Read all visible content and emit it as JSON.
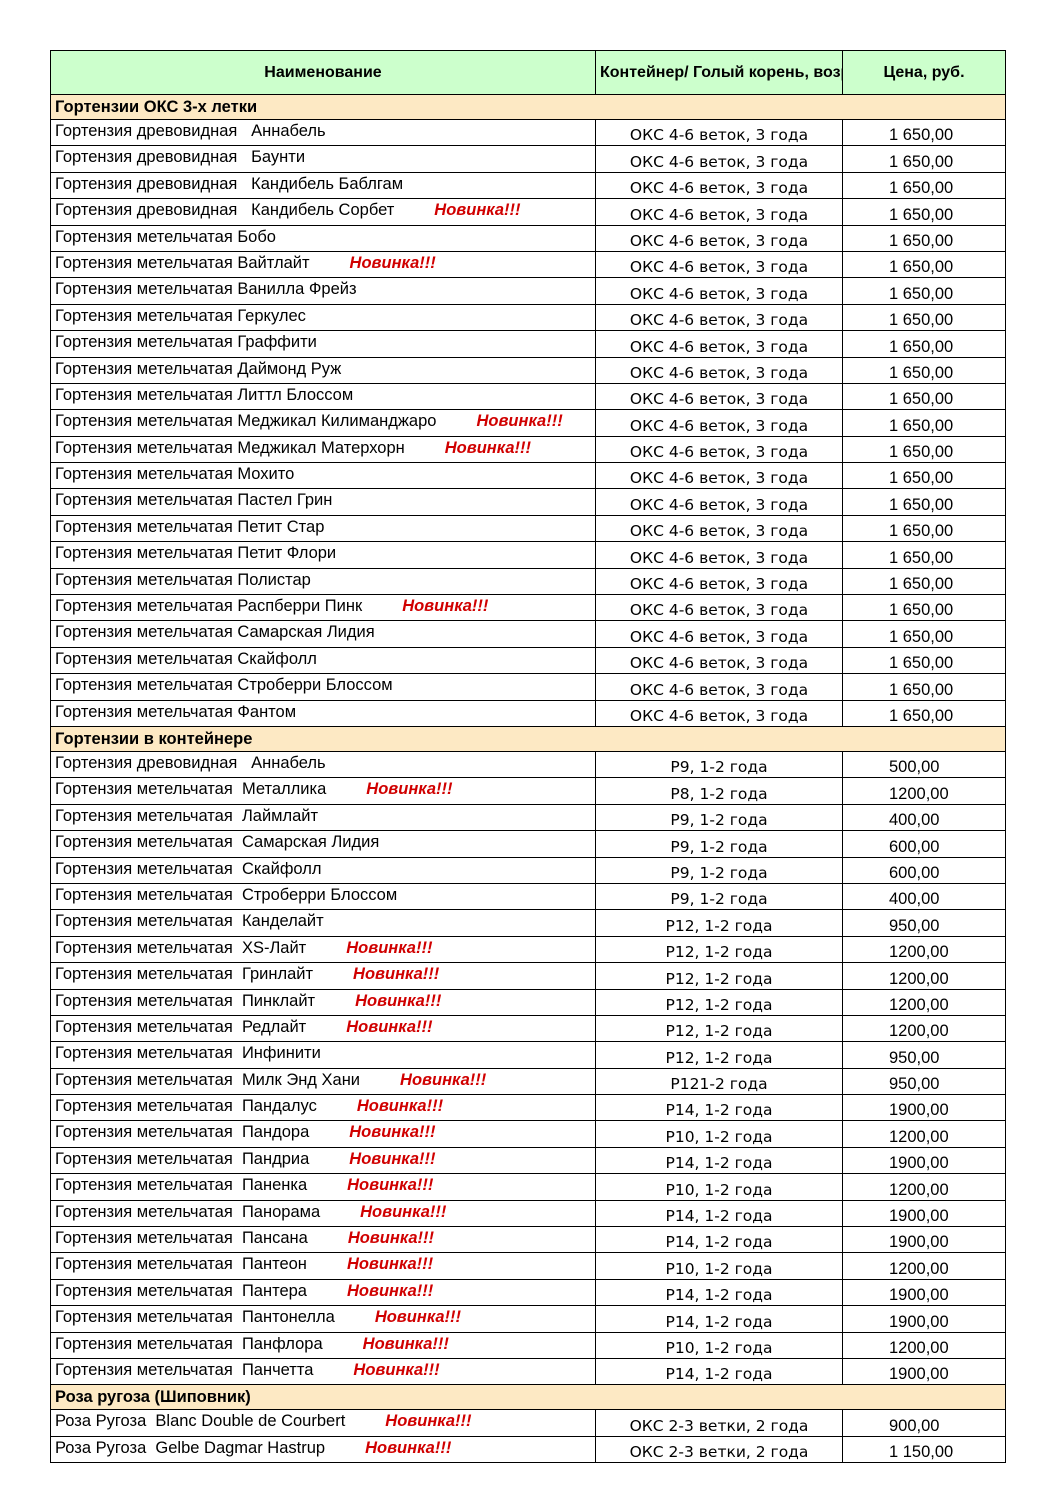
{
  "header": {
    "name": "Наименование",
    "container": "Контейнер/ Голый корень, возраст",
    "price": "Цена, руб."
  },
  "new_label": "Новинка!!!",
  "colors": {
    "header_bg": "#ccffcc",
    "section_bg": "#fde9c4",
    "new_badge": "#d00000"
  },
  "sections": [
    {
      "title": "Гортензии ОКС 3-х летки",
      "rows": [
        {
          "name": "Гортензия древовидная   Аннабель",
          "container": "ОКС 4-6 веток, 3 года",
          "price": "1 650,00",
          "new": false
        },
        {
          "name": "Гортензия древовидная   Баунти",
          "container": "ОКС 4-6 веток, 3 года",
          "price": "1 650,00",
          "new": false
        },
        {
          "name": "Гортензия древовидная   Кандибель Баблгам",
          "container": "ОКС 4-6 веток, 3 года",
          "price": "1 650,00",
          "new": false
        },
        {
          "name": "Гортензия древовидная   Кандибель Сорбет",
          "container": "ОКС 4-6 веток, 3 года",
          "price": "1 650,00",
          "new": true
        },
        {
          "name": "Гортензия метельчатая Бобо",
          "container": "ОКС 4-6 веток, 3 года",
          "price": "1 650,00",
          "new": false
        },
        {
          "name": "Гортензия метельчатая Вайтлайт",
          "container": "ОКС 4-6 веток, 3 года",
          "price": "1 650,00",
          "new": true
        },
        {
          "name": "Гортензия метельчатая Ванилла Фрейз",
          "container": "ОКС 4-6 веток, 3 года",
          "price": "1 650,00",
          "new": false
        },
        {
          "name": "Гортензия метельчатая Геркулес",
          "container": "ОКС 4-6 веток, 3 года",
          "price": "1 650,00",
          "new": false
        },
        {
          "name": "Гортензия метельчатая Граффити",
          "container": "ОКС 4-6 веток, 3 года",
          "price": "1 650,00",
          "new": false
        },
        {
          "name": "Гортензия метельчатая Даймонд Руж",
          "container": "ОКС 4-6 веток, 3 года",
          "price": "1 650,00",
          "new": false
        },
        {
          "name": "Гортензия метельчатая Литтл Блоссом",
          "container": "ОКС 4-6 веток, 3 года",
          "price": "1 650,00",
          "new": false
        },
        {
          "name": "Гортензия метельчатая Меджикал Килиманджаро",
          "container": "ОКС 4-6 веток, 3 года",
          "price": "1 650,00",
          "new": true
        },
        {
          "name": "Гортензия метельчатая Меджикал Матерхорн",
          "container": "ОКС 4-6 веток, 3 года",
          "price": "1 650,00",
          "new": true
        },
        {
          "name": "Гортензия метельчатая Мохито",
          "container": "ОКС 4-6 веток, 3 года",
          "price": "1 650,00",
          "new": false
        },
        {
          "name": "Гортензия метельчатая Пастел Грин",
          "container": "ОКС 4-6 веток, 3 года",
          "price": "1 650,00",
          "new": false
        },
        {
          "name": "Гортензия метельчатая Петит Стар",
          "container": "ОКС 4-6 веток, 3 года",
          "price": "1 650,00",
          "new": false
        },
        {
          "name": "Гортензия метельчатая Петит Флори",
          "container": "ОКС 4-6 веток, 3 года",
          "price": "1 650,00",
          "new": false
        },
        {
          "name": "Гортензия метельчатая Полистар",
          "container": "ОКС 4-6 веток, 3 года",
          "price": "1 650,00",
          "new": false
        },
        {
          "name": "Гортензия метельчатая Распберри Пинк",
          "container": "ОКС 4-6 веток, 3 года",
          "price": "1 650,00",
          "new": true
        },
        {
          "name": "Гортензия метельчатая Самарская Лидия",
          "container": "ОКС 4-6 веток, 3 года",
          "price": "1 650,00",
          "new": false
        },
        {
          "name": "Гортензия метельчатая Скайфолл",
          "container": "ОКС 4-6 веток, 3 года",
          "price": "1 650,00",
          "new": false
        },
        {
          "name": "Гортензия метельчатая Строберри Блоссом",
          "container": "ОКС 4-6 веток, 3 года",
          "price": "1 650,00",
          "new": false
        },
        {
          "name": "Гортензия метельчатая Фантом",
          "container": "ОКС 4-6 веток, 3 года",
          "price": "1 650,00",
          "new": false
        }
      ]
    },
    {
      "title": "Гортензии в контейнере",
      "rows": [
        {
          "name": "Гортензия древовидная   Аннабель",
          "container": "Р9, 1-2 года",
          "price": "500,00",
          "new": false
        },
        {
          "name": "Гортензия метельчатая  Металлика",
          "container": "Р8, 1-2 года",
          "price": "1200,00",
          "new": true
        },
        {
          "name": "Гортензия метельчатая  Лаймлайт",
          "container": "Р9, 1-2 года",
          "price": "400,00",
          "new": false
        },
        {
          "name": "Гортензия метельчатая  Самарская Лидия",
          "container": "Р9, 1-2 года",
          "price": "600,00",
          "new": false
        },
        {
          "name": "Гортензия метельчатая  Скайфолл",
          "container": "Р9, 1-2 года",
          "price": "600,00",
          "new": false
        },
        {
          "name": "Гортензия метельчатая  Строберри Блоссом",
          "container": "Р9, 1-2 года",
          "price": "400,00",
          "new": false
        },
        {
          "name": "Гортензия метельчатая  Канделайт",
          "container": "Р12, 1-2 года",
          "price": "950,00",
          "new": false
        },
        {
          "name": "Гортензия метельчатая  XS-Лайт",
          "container": "Р12, 1-2 года",
          "price": "1200,00",
          "new": true
        },
        {
          "name": "Гортензия метельчатая  Гринлайт",
          "container": "Р12, 1-2 года",
          "price": "1200,00",
          "new": true
        },
        {
          "name": "Гортензия метельчатая  Пинклайт",
          "container": "Р12, 1-2 года",
          "price": "1200,00",
          "new": true
        },
        {
          "name": "Гортензия метельчатая  Редлайт",
          "container": "Р12, 1-2 года",
          "price": "1200,00",
          "new": true
        },
        {
          "name": "Гортензия метельчатая  Инфинити",
          "container": "Р12, 1-2 года",
          "price": "950,00",
          "new": false
        },
        {
          "name": "Гортензия метельчатая  Милк Энд Хани",
          "container": "Р121-2 года",
          "price": "950,00",
          "new": true
        },
        {
          "name": "Гортензия метельчатая  Пандалус",
          "container": "Р14, 1-2 года",
          "price": "1900,00",
          "new": true
        },
        {
          "name": "Гортензия метельчатая  Пандора",
          "container": "Р10, 1-2 года",
          "price": "1200,00",
          "new": true
        },
        {
          "name": "Гортензия метельчатая  Пандриа",
          "container": "Р14, 1-2 года",
          "price": "1900,00",
          "new": true
        },
        {
          "name": "Гортензия метельчатая  Паненка",
          "container": "Р10, 1-2 года",
          "price": "1200,00",
          "new": true
        },
        {
          "name": "Гортензия метельчатая  Панорама",
          "container": "Р14, 1-2 года",
          "price": "1900,00",
          "new": true
        },
        {
          "name": "Гортензия метельчатая  Пансана",
          "container": "Р14, 1-2 года",
          "price": "1900,00",
          "new": true
        },
        {
          "name": "Гортензия метельчатая  Пантеон",
          "container": "Р10, 1-2 года",
          "price": "1200,00",
          "new": true
        },
        {
          "name": "Гортензия метельчатая  Пантера",
          "container": "Р14, 1-2 года",
          "price": "1900,00",
          "new": true
        },
        {
          "name": "Гортензия метельчатая  Пантонелла",
          "container": "Р14, 1-2 года",
          "price": "1900,00",
          "new": true
        },
        {
          "name": "Гортензия метельчатая  Панфлора",
          "container": "Р10, 1-2 года",
          "price": "1200,00",
          "new": true
        },
        {
          "name": "Гортензия метельчатая  Панчетта",
          "container": "Р14, 1-2 года",
          "price": "1900,00",
          "new": true
        }
      ]
    },
    {
      "title": "Роза ругоза (Шиповник)",
      "rows": [
        {
          "name": "Роза Ругоза  Blanc Double de Courbert",
          "container": "ОКС 2-3 ветки, 2 года",
          "price": "900,00",
          "new": true
        },
        {
          "name": "Роза Ругоза  Gelbe Dagmar Hastrup",
          "container": "ОКС 2-3 ветки, 2 года",
          "price": "1 150,00",
          "new": true
        }
      ]
    }
  ]
}
